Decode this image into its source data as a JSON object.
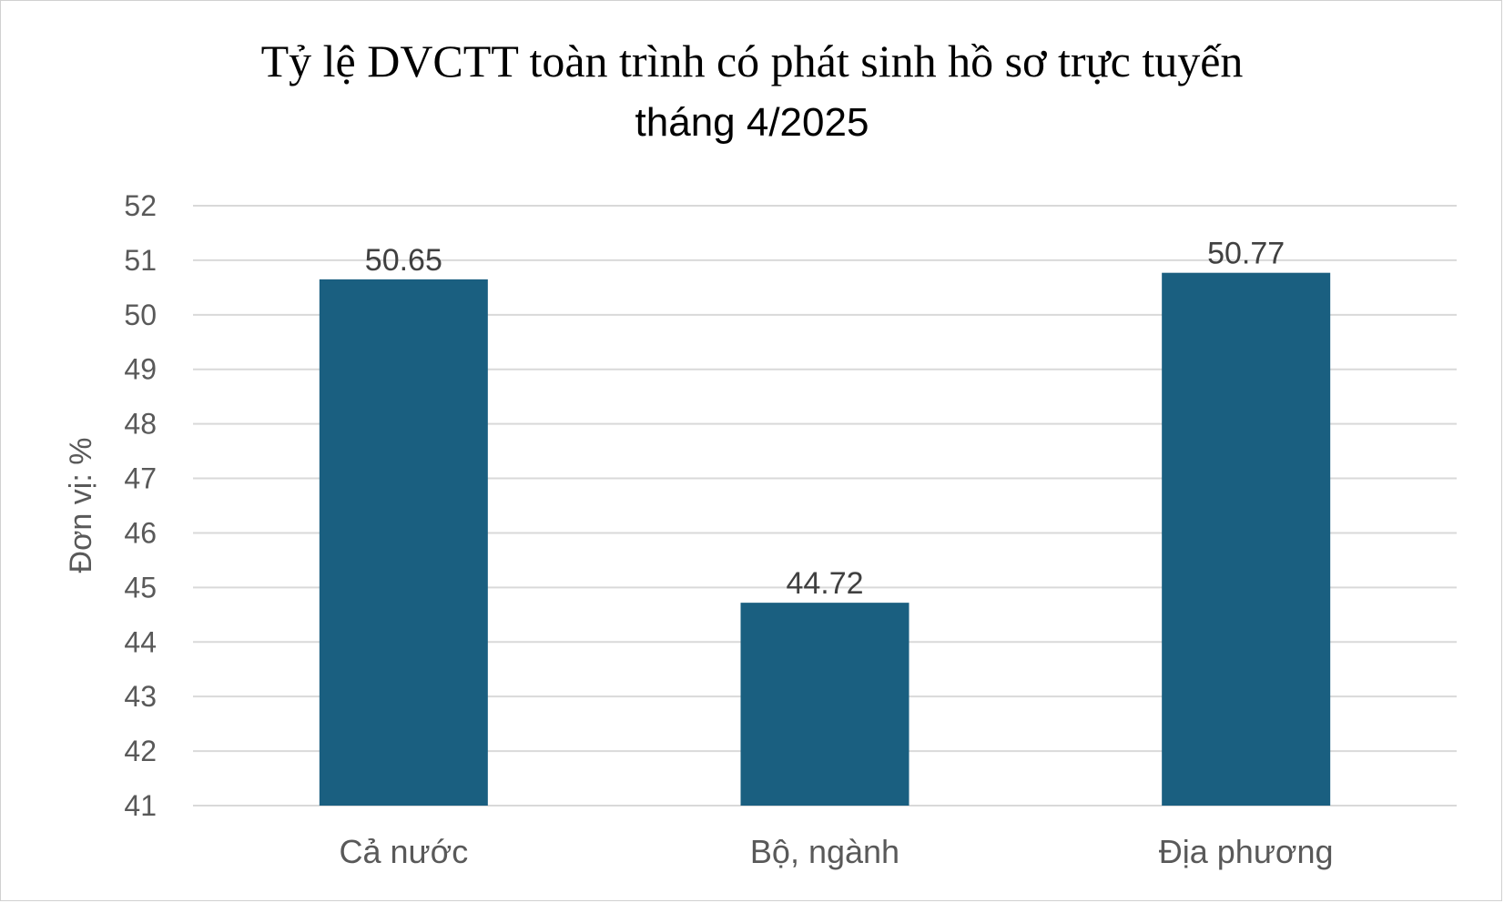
{
  "chart_data": {
    "type": "bar",
    "title": "Tỷ lệ DVCTT toàn trình có phát sinh hồ sơ trực tuyến",
    "subtitle": "tháng 4/2025",
    "xlabel": "",
    "ylabel": "Đơn vị: %",
    "categories": [
      "Cả nước",
      "Bộ, ngành",
      "Địa phương"
    ],
    "values": [
      50.65,
      44.72,
      50.77
    ],
    "data_labels": [
      "50.65",
      "44.72",
      "50.77"
    ],
    "ylim": [
      41,
      52
    ],
    "yticks": [
      "41",
      "42",
      "43",
      "44",
      "45",
      "46",
      "47",
      "48",
      "49",
      "50",
      "51",
      "52"
    ],
    "grid": true,
    "legend": "none",
    "bar_color": "#1a5f80",
    "grid_color": "#d9d9d9"
  }
}
